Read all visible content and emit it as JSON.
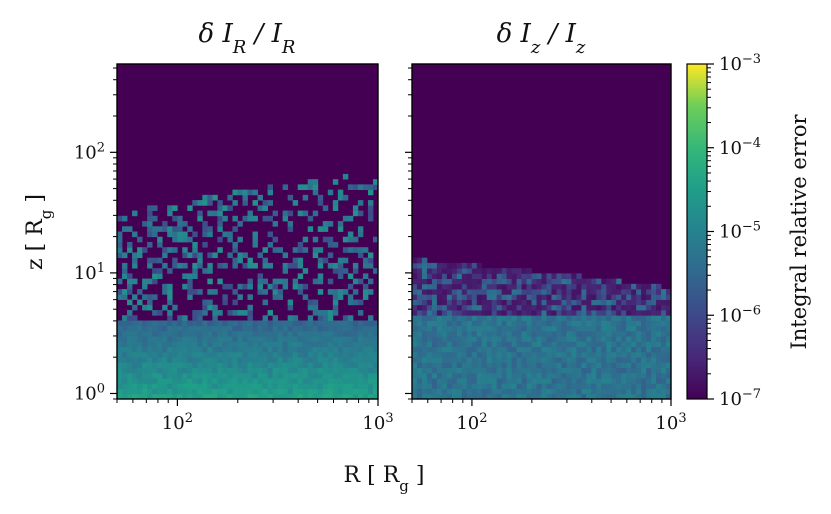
{
  "chart_data": {
    "type": "heatmap",
    "figure_xlabel": "R [ R_g ]",
    "figure_ylabel": "z [ R_g ]",
    "colorbar": {
      "label": "Integral relative error",
      "scale": "log",
      "range": [
        1e-07,
        0.001
      ],
      "colormap": "viridis",
      "ticks": [
        1e-07,
        1e-06,
        1e-05,
        0.0001,
        0.001
      ],
      "tick_labels": [
        "10^-7",
        "10^-6",
        "10^-5",
        "10^-4",
        "10^-3"
      ]
    },
    "panels": [
      {
        "title": "δ I_R / I_R",
        "xscale": "log",
        "yscale": "log",
        "xlim": [
          50,
          1000
        ],
        "ylim": [
          0.9,
          540
        ],
        "xticks": [
          100,
          1000
        ],
        "xtick_labels": [
          "10^2",
          "10^3"
        ],
        "yticks": [
          1,
          10,
          100
        ],
        "ytick_labels": [
          "10^0",
          "10^1",
          "10^2"
        ],
        "description_values": {
          "background_error": 1e-07,
          "near_midplane_error": 3e-05,
          "noise_error_range": [
            1e-06,
            2e-05
          ],
          "noise_extends_to_z": [
            30,
            60
          ]
        }
      },
      {
        "title": "δ I_z / I_z",
        "xscale": "log",
        "yscale": "log",
        "xlim": [
          50,
          1000
        ],
        "ylim": [
          0.9,
          540
        ],
        "xticks": [
          100,
          1000
        ],
        "xtick_labels": [
          "10^2",
          "10^3"
        ],
        "yticks": [
          1,
          10,
          100
        ],
        "ytick_labels": [
          "",
          "",
          ""
        ],
        "description_values": {
          "background_error": 1e-07,
          "near_midplane_error": 6e-06,
          "noise_error_range": [
            1e-06,
            1e-05
          ],
          "noise_extends_to_z": [
            4,
            15
          ]
        }
      }
    ]
  }
}
